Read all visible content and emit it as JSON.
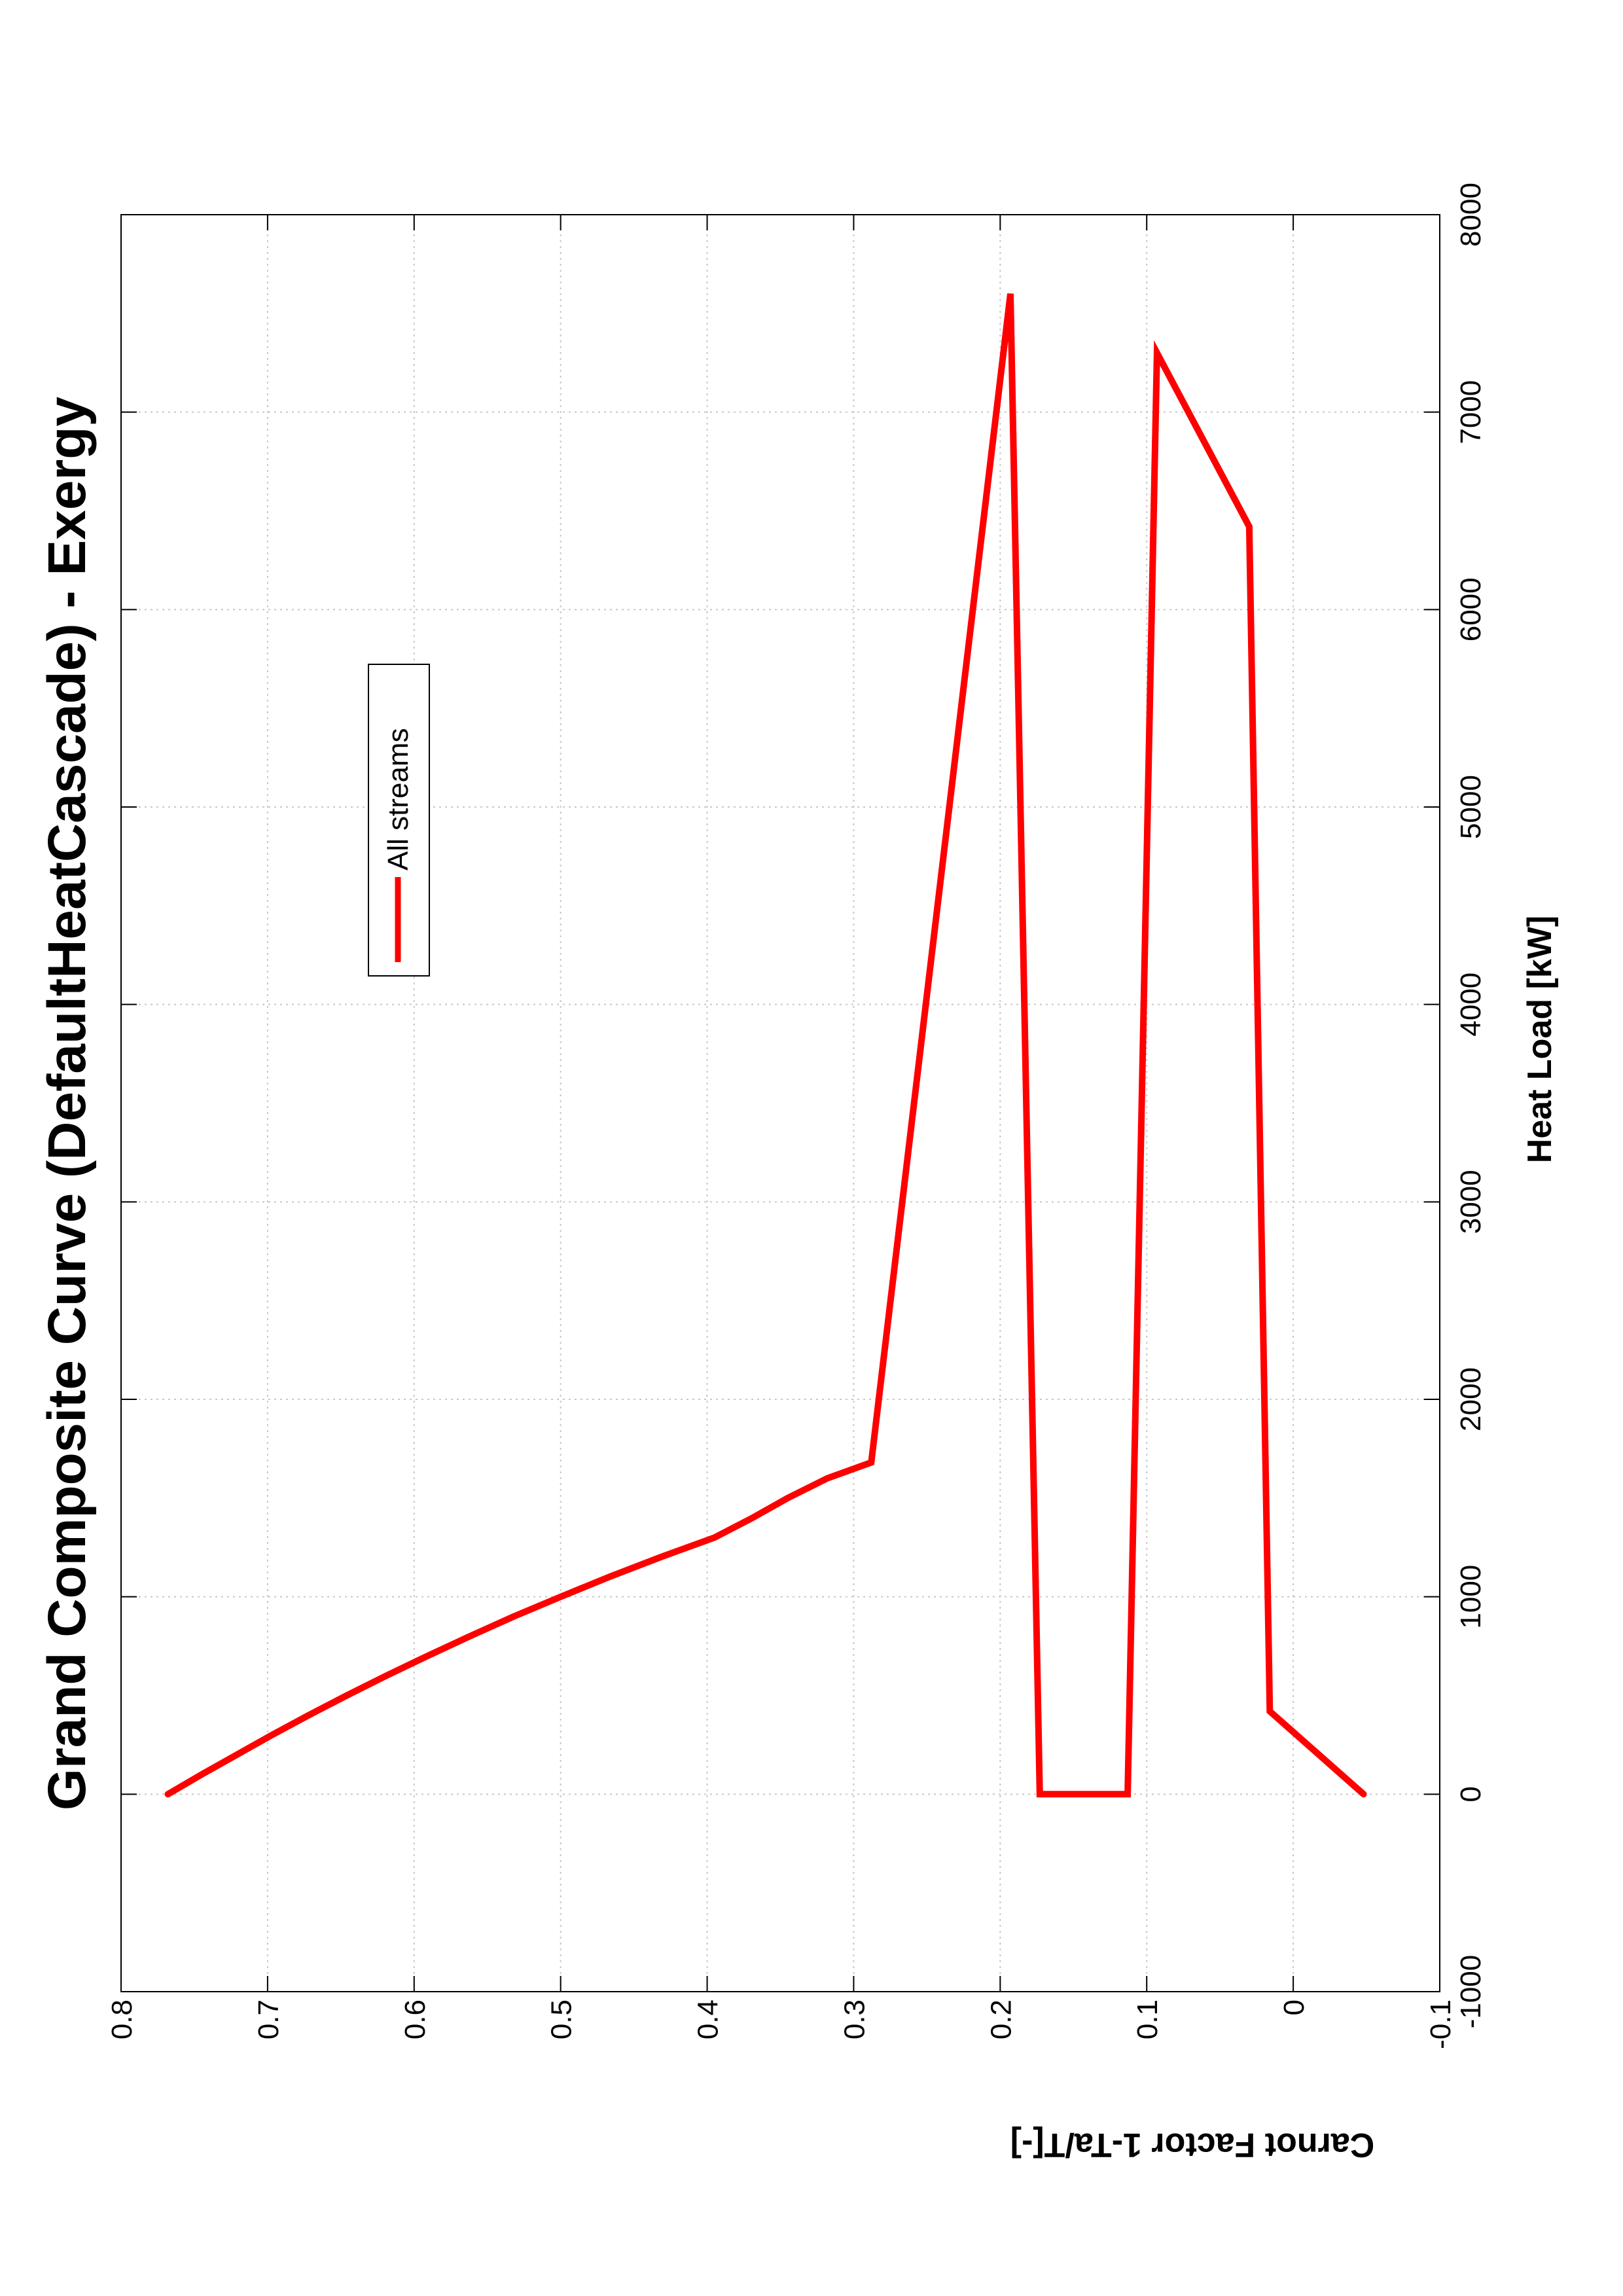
{
  "chart_data": {
    "type": "line",
    "title": "Grand Composite Curve (DefaultHeatCascade) - Exergy",
    "xlabel": "Heat Load [kW]",
    "ylabel": "Carnot Factor 1-Ta/T[-]",
    "xlim": [
      -1000,
      8000
    ],
    "ylim": [
      -0.1,
      0.8
    ],
    "x_ticks": [
      "-1000",
      "0",
      "1000",
      "2000",
      "3000",
      "4000",
      "5000",
      "6000",
      "7000",
      "8000"
    ],
    "y_ticks": [
      "-0.1",
      "0",
      "0.1",
      "0.2",
      "0.3",
      "0.4",
      "0.5",
      "0.6",
      "0.7",
      "0.8"
    ],
    "grid": true,
    "orientation": "rotated 90° counter-clockwise on page",
    "legend": {
      "position": "inside, upper-middle",
      "entries": [
        "All streams"
      ]
    },
    "series": [
      {
        "name": "All streams",
        "color": "#ff0000",
        "points": [
          [
            0,
            0.768
          ],
          [
            100,
            0.745
          ],
          [
            200,
            0.721
          ],
          [
            300,
            0.697
          ],
          [
            400,
            0.672
          ],
          [
            500,
            0.646
          ],
          [
            600,
            0.619
          ],
          [
            700,
            0.591
          ],
          [
            800,
            0.562
          ],
          [
            900,
            0.532
          ],
          [
            1000,
            0.5
          ],
          [
            1100,
            0.467
          ],
          [
            1200,
            0.432
          ],
          [
            1300,
            0.395
          ],
          [
            1400,
            0.369
          ],
          [
            1500,
            0.345
          ],
          [
            1600,
            0.318
          ],
          [
            1680,
            0.288
          ],
          [
            7600,
            0.193
          ],
          [
            0,
            0.173
          ],
          [
            0,
            0.113
          ],
          [
            7300,
            0.093
          ],
          [
            6420,
            0.03
          ],
          [
            420,
            0.016
          ],
          [
            0,
            -0.048
          ]
        ]
      }
    ]
  }
}
